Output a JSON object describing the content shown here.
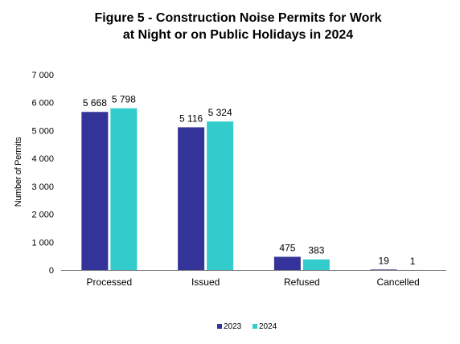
{
  "chart_data": {
    "type": "bar",
    "title_lines": [
      "Figure 5 - Construction Noise Permits for Work",
      "at Night or on Public Holidays in 2024"
    ],
    "xlabel": "",
    "ylabel": "Number of Permits",
    "categories": [
      "Processed",
      "Issued",
      "Refused",
      "Cancelled"
    ],
    "series": [
      {
        "name": "2023",
        "color": "#333399",
        "values": [
          5668,
          5116,
          475,
          19
        ],
        "labels": [
          "5 668",
          "5 116",
          "475",
          "19"
        ]
      },
      {
        "name": "2024",
        "color": "#33CCCC",
        "values": [
          5798,
          5324,
          383,
          1
        ],
        "labels": [
          "5 798",
          "5 324",
          "383",
          "1"
        ]
      }
    ],
    "ylim": [
      0,
      7000
    ],
    "yticks": [
      0,
      1000,
      2000,
      3000,
      4000,
      5000,
      6000,
      7000
    ],
    "ytick_labels": [
      "0",
      "1 000",
      "2 000",
      "3 000",
      "4 000",
      "5 000",
      "6 000",
      "7 000"
    ],
    "grid": false,
    "legend_position": "bottom"
  }
}
